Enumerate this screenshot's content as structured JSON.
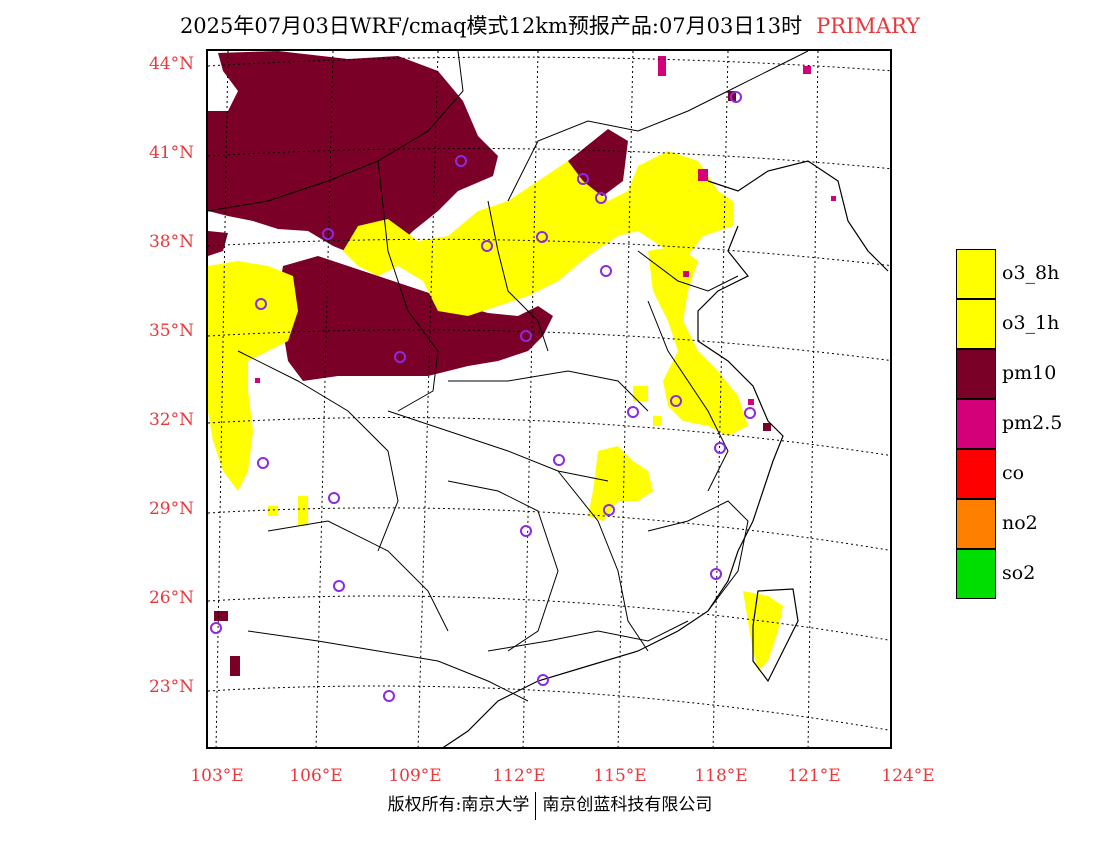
{
  "title": {
    "main": "2025年07月03日WRF/cmaq模式12km预报产品:07月03日13时",
    "tag": "PRIMARY"
  },
  "axes": {
    "lat_labels": [
      "44°N",
      "41°N",
      "38°N",
      "35°N",
      "32°N",
      "29°N",
      "26°N",
      "23°N"
    ],
    "lon_labels": [
      "103°E",
      "106°E",
      "109°E",
      "112°E",
      "115°E",
      "118°E",
      "121°E",
      "124°E"
    ]
  },
  "legend": {
    "items": [
      {
        "label": "o3_8h",
        "color": "#ffff00"
      },
      {
        "label": "o3_1h",
        "color": "#ffff00"
      },
      {
        "label": "pm10",
        "color": "#7a0028"
      },
      {
        "label": "pm2.5",
        "color": "#d4007a"
      },
      {
        "label": "co",
        "color": "#ff0000"
      },
      {
        "label": "no2",
        "color": "#ff8000"
      },
      {
        "label": "so2",
        "color": "#00dd00"
      }
    ]
  },
  "footer": {
    "left": "版权所有:南京大学",
    "right": "南京创蓝科技有限公司"
  },
  "colors": {
    "accent": "#e8383c",
    "o3": "#ffff00",
    "pm10": "#7a0028",
    "pm25": "#d4007a",
    "station": "#8a2be2"
  }
}
